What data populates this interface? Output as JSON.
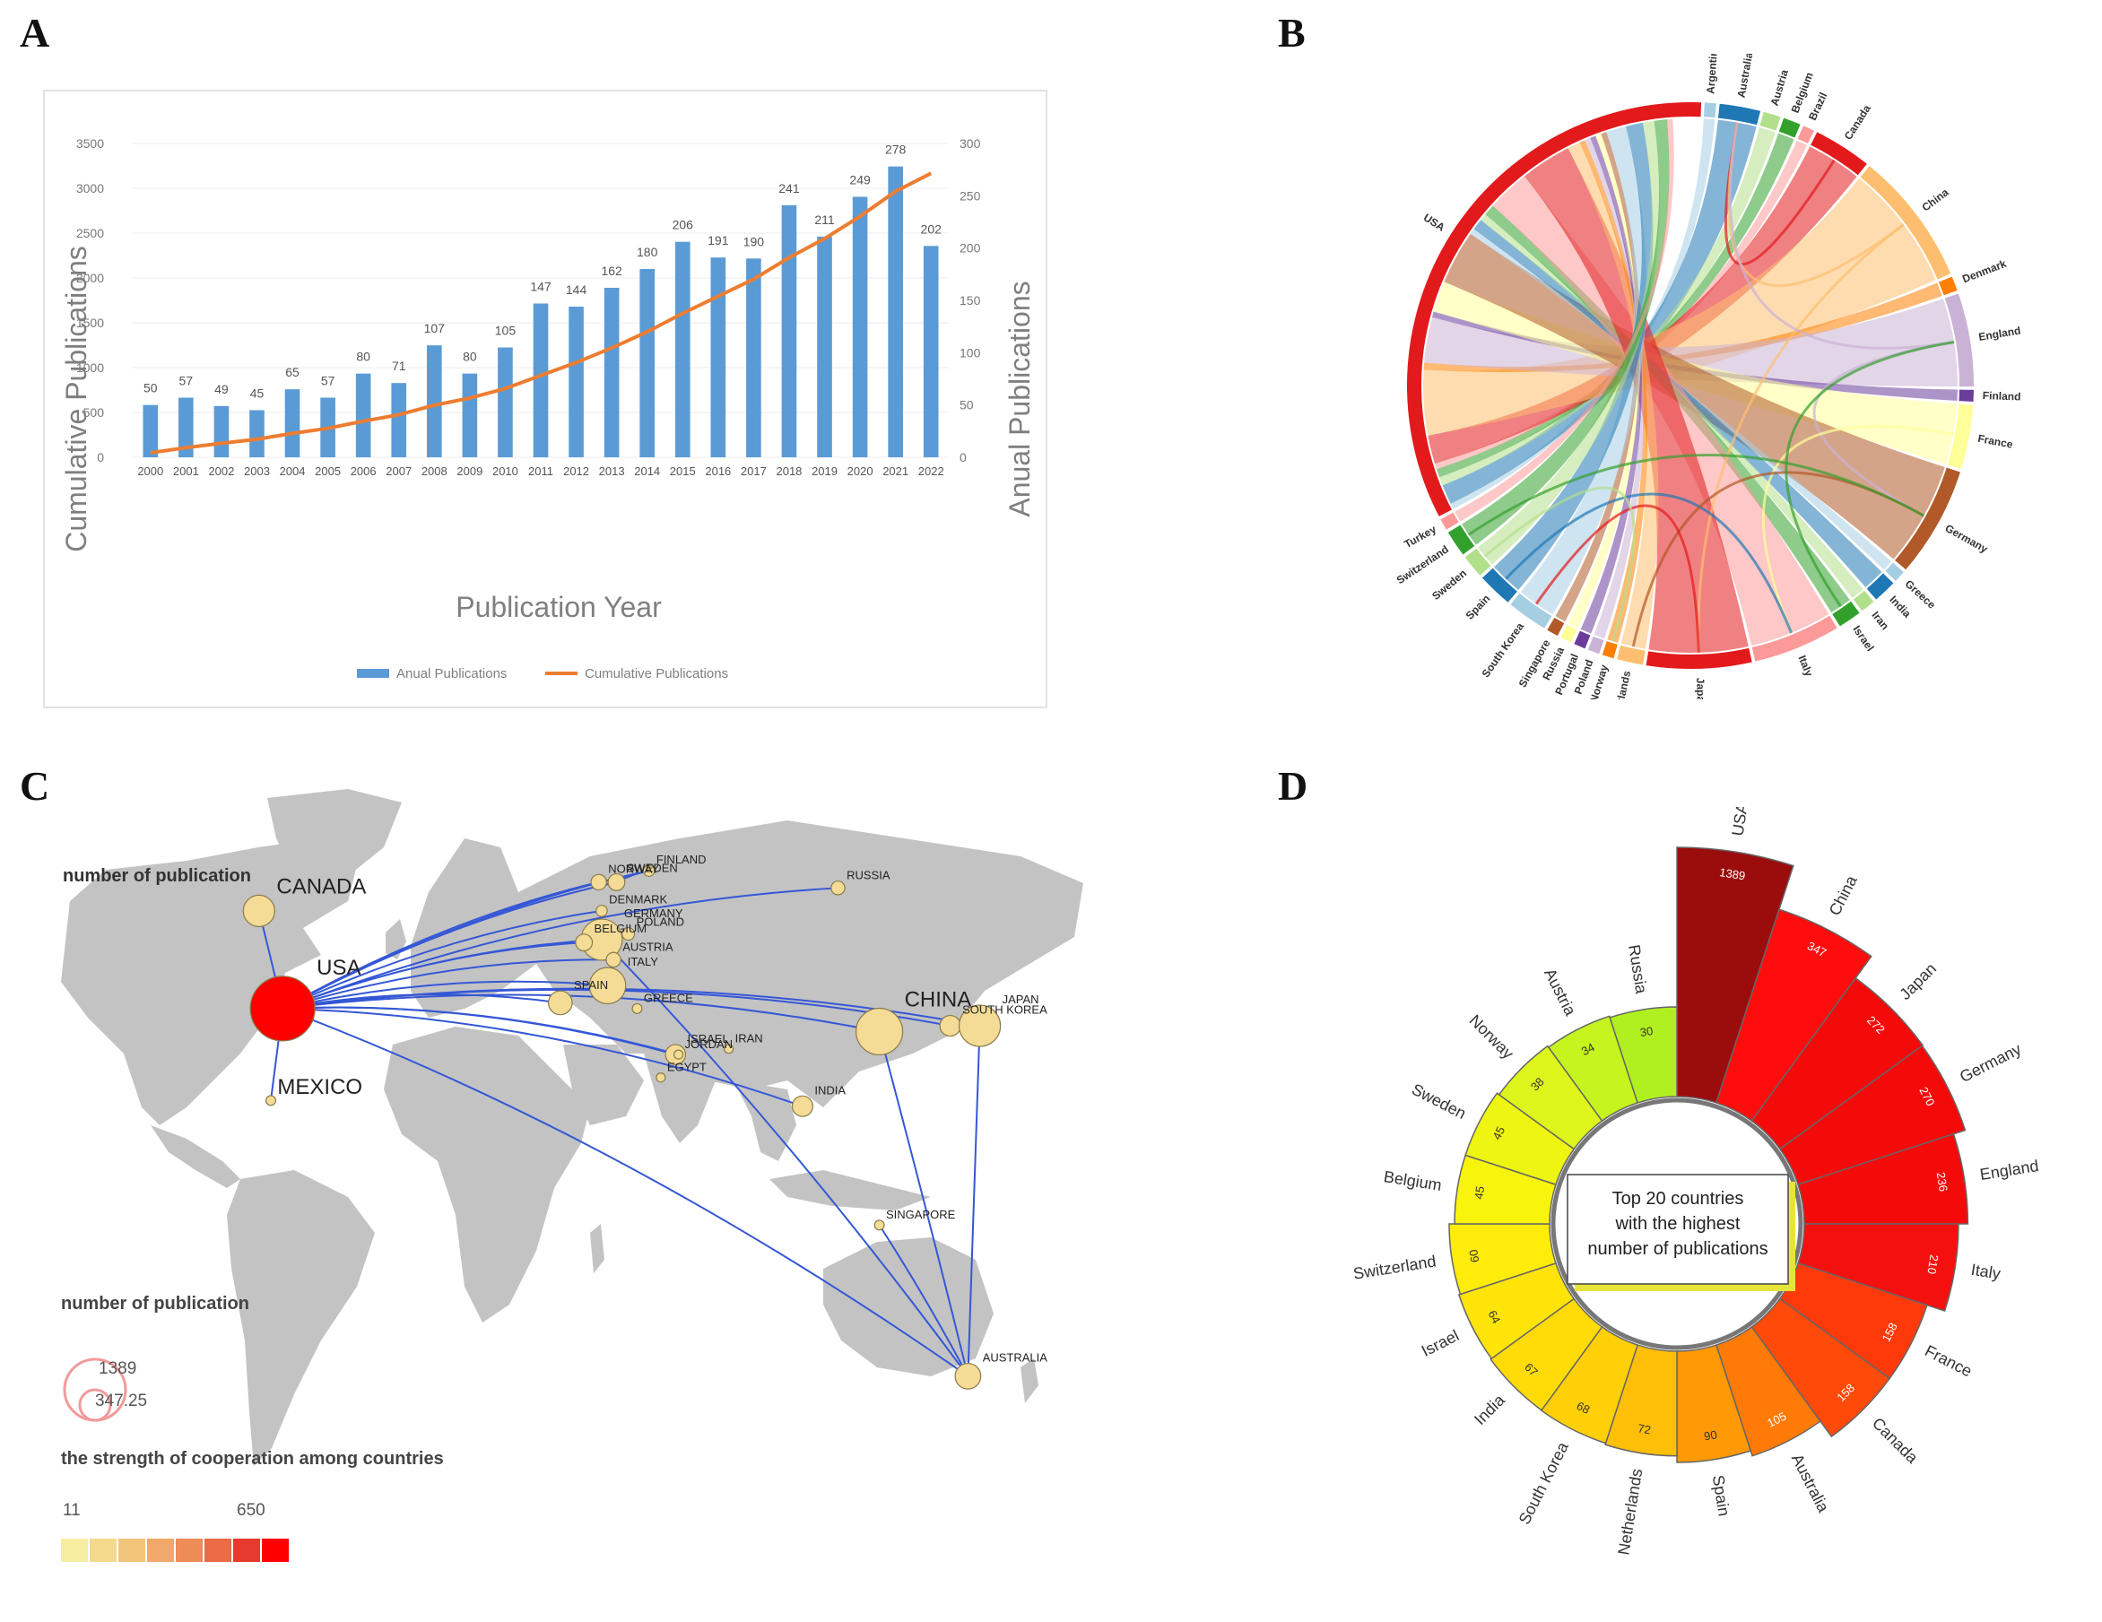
{
  "panels": {
    "a": "A",
    "b": "B",
    "c": "C",
    "d": "D"
  },
  "chart_data": [
    {
      "id": "A",
      "type": "bar",
      "xlabel": "Publication Year",
      "ylabel": "Cumulative Publications",
      "y2label": "Anual Publications",
      "ylim": [
        0,
        3500
      ],
      "y2lim": [
        0,
        300
      ],
      "yticks": [
        0,
        500,
        1000,
        1500,
        2000,
        2500,
        3000,
        3500
      ],
      "y2ticks": [
        0,
        50,
        100,
        150,
        200,
        250,
        300
      ],
      "categories": [
        "2000",
        "2001",
        "2002",
        "2003",
        "2004",
        "2005",
        "2006",
        "2007",
        "2008",
        "2009",
        "2010",
        "2011",
        "2012",
        "2013",
        "2014",
        "2015",
        "2016",
        "2017",
        "2018",
        "2019",
        "2020",
        "2021",
        "2022"
      ],
      "series": [
        {
          "name": "Anual Publications",
          "kind": "bar",
          "axis": "right",
          "color": "#5b9bd5",
          "values": [
            50,
            57,
            49,
            45,
            65,
            57,
            80,
            71,
            107,
            80,
            105,
            147,
            144,
            162,
            180,
            206,
            191,
            190,
            241,
            211,
            249,
            278,
            202
          ]
        },
        {
          "name": "Cumulative Publications",
          "kind": "line",
          "axis": "left",
          "color": "#ed7d31",
          "values": [
            50,
            107,
            156,
            201,
            266,
            323,
            403,
            474,
            581,
            661,
            766,
            913,
            1057,
            1219,
            1399,
            1605,
            1796,
            1986,
            2227,
            2438,
            2687,
            2965,
            3167
          ]
        }
      ],
      "legend": [
        "Anual Publications",
        "Cumulative Publications"
      ]
    },
    {
      "id": "B",
      "type": "chord",
      "countries": [
        {
          "name": "Argentina",
          "color": "#a6cee3",
          "weight": 0.4
        },
        {
          "name": "Australia",
          "color": "#1f78b4",
          "weight": 1.4
        },
        {
          "name": "Austria",
          "color": "#b2df8a",
          "weight": 0.6
        },
        {
          "name": "Belgium",
          "color": "#33a02c",
          "weight": 0.6
        },
        {
          "name": "Brazil",
          "color": "#fb9a99",
          "weight": 0.4
        },
        {
          "name": "Canada",
          "color": "#e31a1c",
          "weight": 2.0
        },
        {
          "name": "China",
          "color": "#fdbf6f",
          "weight": 4.6
        },
        {
          "name": "Denmark",
          "color": "#ff7f00",
          "weight": 0.5
        },
        {
          "name": "England",
          "color": "#cab2d6",
          "weight": 3.2
        },
        {
          "name": "Finland",
          "color": "#6a3d9a",
          "weight": 0.4
        },
        {
          "name": "France",
          "color": "#ffff99",
          "weight": 2.2
        },
        {
          "name": "Germany",
          "color": "#b15928",
          "weight": 3.8
        },
        {
          "name": "Greece",
          "color": "#a6cee3",
          "weight": 0.4
        },
        {
          "name": "India",
          "color": "#1f78b4",
          "weight": 0.8
        },
        {
          "name": "Iran",
          "color": "#b2df8a",
          "weight": 0.5
        },
        {
          "name": "Israel",
          "color": "#33a02c",
          "weight": 0.8
        },
        {
          "name": "Italy",
          "color": "#fb9a99",
          "weight": 3.0
        },
        {
          "name": "Japan",
          "color": "#e31a1c",
          "weight": 3.6
        },
        {
          "name": "Netherlands",
          "color": "#fdbf6f",
          "weight": 0.9
        },
        {
          "name": "Norway",
          "color": "#ff7f00",
          "weight": 0.4
        },
        {
          "name": "Poland",
          "color": "#cab2d6",
          "weight": 0.4
        },
        {
          "name": "Portugal",
          "color": "#6a3d9a",
          "weight": 0.4
        },
        {
          "name": "Russia",
          "color": "#ffff99",
          "weight": 0.4
        },
        {
          "name": "Singapore",
          "color": "#b15928",
          "weight": 0.4
        },
        {
          "name": "South Korea",
          "color": "#a6cee3",
          "weight": 1.4
        },
        {
          "name": "Spain",
          "color": "#1f78b4",
          "weight": 1.2
        },
        {
          "name": "Sweden",
          "color": "#b2df8a",
          "weight": 0.8
        },
        {
          "name": "Switzerland",
          "color": "#33a02c",
          "weight": 0.9
        },
        {
          "name": "Turkey",
          "color": "#fb9a99",
          "weight": 0.4
        },
        {
          "name": "USA",
          "color": "#e31a1c",
          "weight": 20.0
        }
      ]
    },
    {
      "id": "C",
      "type": "map",
      "nodes": [
        {
          "name": "USA",
          "size": 1389,
          "lon": -98,
          "lat": 39
        },
        {
          "name": "CANADA",
          "size": 158,
          "lon": -106,
          "lat": 56
        },
        {
          "name": "MEXICO",
          "size": 15,
          "lon": -102,
          "lat": 23
        },
        {
          "name": "NORWAY",
          "size": 38,
          "lon": 9,
          "lat": 61
        },
        {
          "name": "SWEDEN",
          "size": 45,
          "lon": 15,
          "lat": 61
        },
        {
          "name": "FINLAND",
          "size": 20,
          "lon": 26,
          "lat": 63
        },
        {
          "name": "DENMARK",
          "size": 20,
          "lon": 10,
          "lat": 56
        },
        {
          "name": "GERMANY",
          "size": 270,
          "lon": 10,
          "lat": 51
        },
        {
          "name": "POLAND",
          "size": 25,
          "lon": 19,
          "lat": 52
        },
        {
          "name": "BELGIUM",
          "size": 45,
          "lon": 4,
          "lat": 50.5
        },
        {
          "name": "AUSTRIA",
          "size": 34,
          "lon": 14,
          "lat": 47.5
        },
        {
          "name": "SPAIN",
          "size": 90,
          "lon": -4,
          "lat": 40
        },
        {
          "name": "ITALY",
          "size": 210,
          "lon": 12,
          "lat": 43
        },
        {
          "name": "GREECE",
          "size": 15,
          "lon": 22,
          "lat": 39
        },
        {
          "name": "ISRAEL",
          "size": 64,
          "lon": 35,
          "lat": 31
        },
        {
          "name": "JORDAN",
          "size": 12,
          "lon": 36,
          "lat": 31
        },
        {
          "name": "EGYPT",
          "size": 12,
          "lon": 30,
          "lat": 27
        },
        {
          "name": "IRAN",
          "size": 12,
          "lon": 53,
          "lat": 32
        },
        {
          "name": "RUSSIA",
          "size": 30,
          "lon": 90,
          "lat": 60
        },
        {
          "name": "INDIA",
          "size": 67,
          "lon": 78,
          "lat": 22
        },
        {
          "name": "CHINA",
          "size": 347,
          "lon": 104,
          "lat": 35
        },
        {
          "name": "SOUTH KOREA",
          "size": 68,
          "lon": 128,
          "lat": 36
        },
        {
          "name": "JAPAN",
          "size": 272,
          "lon": 138,
          "lat": 36
        },
        {
          "name": "SINGAPORE",
          "size": 15,
          "lon": 104,
          "lat": 1.3
        },
        {
          "name": "AUSTRALIA",
          "size": 105,
          "lon": 134,
          "lat": -25
        }
      ],
      "links_from_usa": [
        "CANADA",
        "MEXICO",
        "NORWAY",
        "SWEDEN",
        "FINLAND",
        "DENMARK",
        "GERMANY",
        "BELGIUM",
        "AUSTRIA",
        "SPAIN",
        "ITALY",
        "ISRAEL",
        "JORDAN",
        "INDIA",
        "CHINA",
        "SOUTH KOREA",
        "JAPAN",
        "AUSTRALIA",
        "RUSSIA"
      ],
      "extra_links": [
        [
          "CHINA",
          "AUSTRALIA"
        ],
        [
          "JAPAN",
          "AUSTRALIA"
        ],
        [
          "SINGAPORE",
          "AUSTRALIA"
        ],
        [
          "GERMANY",
          "AUSTRALIA"
        ],
        [
          "ENGLAND",
          "AUSTRALIA"
        ],
        [
          "SWEDEN",
          "FINLAND"
        ]
      ],
      "legend_size_title": "number of publication",
      "legend_size_values": [
        "1389",
        "347.25"
      ],
      "legend_strength_title": "the strength of cooperation among countries",
      "legend_strength_min": "11",
      "legend_strength_max": "650",
      "legend_strength_colors": [
        "#f7eda0",
        "#f4d98a",
        "#f2c47a",
        "#f0a96a",
        "#ee8c58",
        "#ea6b45",
        "#e63a2e",
        "#ff0000"
      ]
    },
    {
      "id": "D",
      "type": "radial-bar",
      "center_text": [
        "Top 20 countries",
        "with the highest",
        "number of publications"
      ],
      "items": [
        {
          "name": "USA",
          "value": 1389,
          "color": "#9b0d0d"
        },
        {
          "name": "China",
          "value": 347,
          "color": "#ff0d0d"
        },
        {
          "name": "Japan",
          "value": 272,
          "color": "#f50a0a"
        },
        {
          "name": "Germany",
          "value": 270,
          "color": "#f50a0a"
        },
        {
          "name": "England",
          "value": 236,
          "color": "#f50a0a"
        },
        {
          "name": "Italy",
          "value": 210,
          "color": "#f51010"
        },
        {
          "name": "France",
          "value": 158,
          "color": "#ff3a0a"
        },
        {
          "name": "Canada",
          "value": 158,
          "color": "#ff4a0a"
        },
        {
          "name": "Australia",
          "value": 105,
          "color": "#ff7a06"
        },
        {
          "name": "Spain",
          "value": 90,
          "color": "#ff9a06"
        },
        {
          "name": "Netherlands",
          "value": 72,
          "color": "#ffbf08"
        },
        {
          "name": "South Korea",
          "value": 68,
          "color": "#ffcf08"
        },
        {
          "name": "India",
          "value": 67,
          "color": "#ffdb08"
        },
        {
          "name": "Israel",
          "value": 64,
          "color": "#ffe40a"
        },
        {
          "name": "Switzerland",
          "value": 60,
          "color": "#ffec0a"
        },
        {
          "name": "Belgium",
          "value": 45,
          "color": "#f8f40c"
        },
        {
          "name": "Sweden",
          "value": 45,
          "color": "#eef510"
        },
        {
          "name": "Norway",
          "value": 38,
          "color": "#ddf51a"
        },
        {
          "name": "Austria",
          "value": 34,
          "color": "#c5f41e"
        },
        {
          "name": "Russia",
          "value": 30,
          "color": "#b0f020"
        }
      ]
    }
  ]
}
